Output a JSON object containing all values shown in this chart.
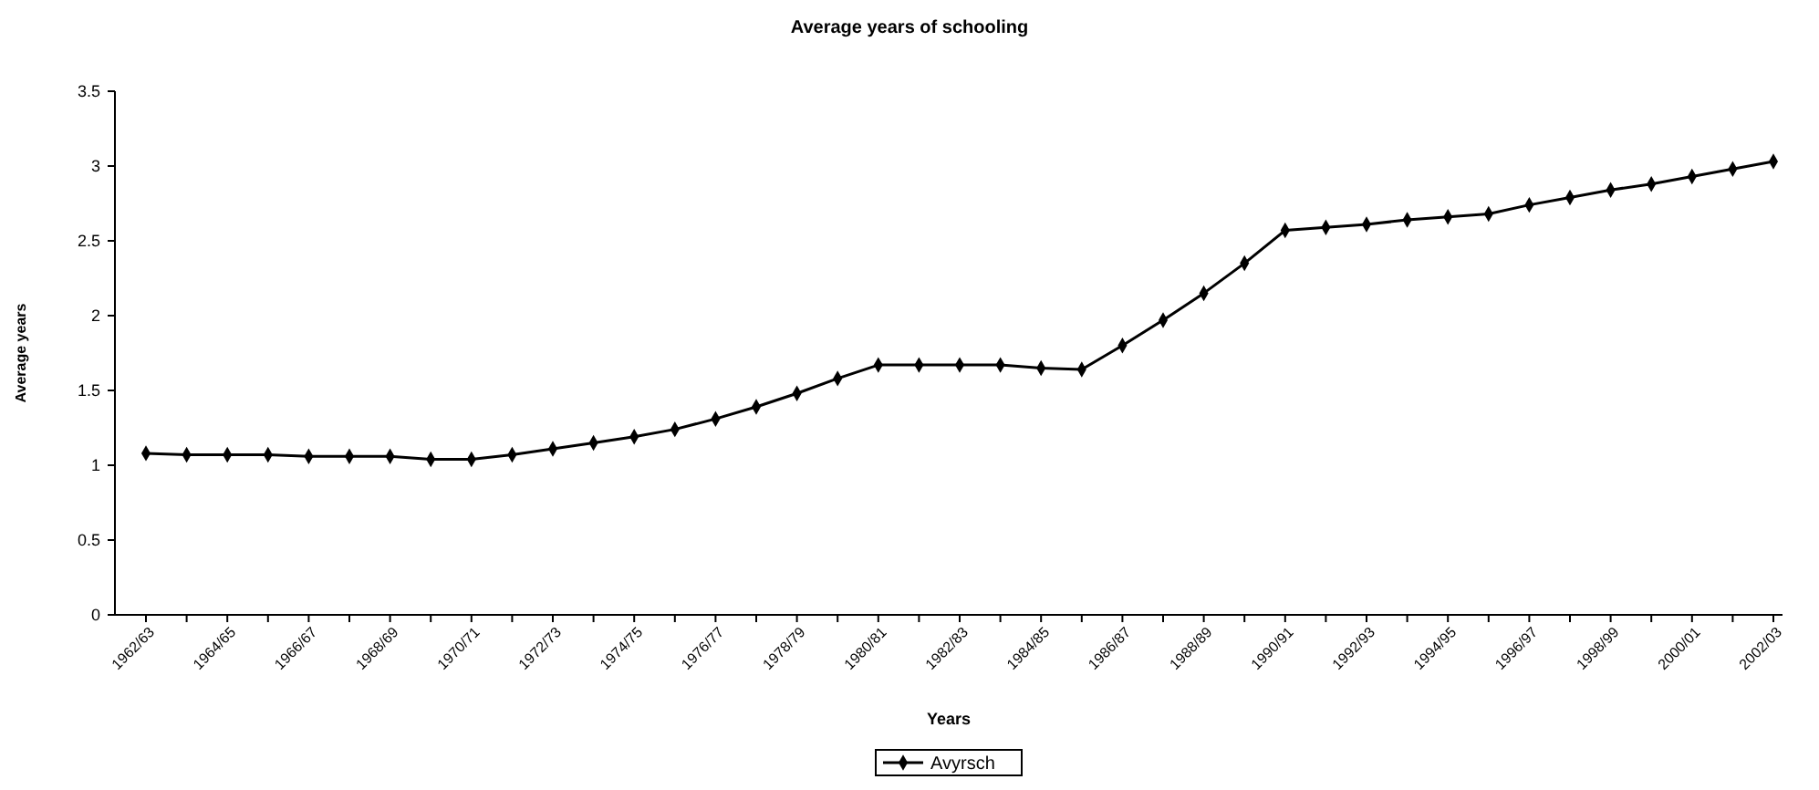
{
  "chart_data": {
    "type": "line",
    "title": "Average years of schooling",
    "xlabel": "Years",
    "ylabel": "Average years",
    "categories": [
      "1962/63",
      null,
      "1964/65",
      null,
      "1966/67",
      null,
      "1968/69",
      null,
      "1970/71",
      null,
      "1972/73",
      null,
      "1974/75",
      null,
      "1976/77",
      null,
      "1978/79",
      null,
      "1980/81",
      null,
      "1982/83",
      null,
      "1984/85",
      null,
      "1986/87",
      null,
      "1988/89",
      null,
      "1990/91",
      null,
      "1992/93",
      null,
      "1994/95",
      null,
      "1996/97",
      null,
      "1998/99",
      null,
      "2000/01",
      null,
      "2002/03"
    ],
    "series": [
      {
        "name": "Avyrsch",
        "color": "#000000",
        "values": [
          1.08,
          1.07,
          1.07,
          1.07,
          1.06,
          1.06,
          1.06,
          1.04,
          1.04,
          1.07,
          1.11,
          1.15,
          1.19,
          1.24,
          1.31,
          1.39,
          1.48,
          1.58,
          1.67,
          1.67,
          1.67,
          1.67,
          1.65,
          1.64,
          1.8,
          1.97,
          2.15,
          2.35,
          2.57,
          2.59,
          2.61,
          2.64,
          2.66,
          2.68,
          2.74,
          2.79,
          2.84,
          2.88,
          2.93,
          2.98,
          3.03
        ]
      }
    ],
    "ylim": [
      0,
      3.5
    ],
    "yticks": [
      0,
      0.5,
      1,
      1.5,
      2,
      2.5,
      3,
      3.5
    ],
    "grid": false,
    "legend": "bottom",
    "marker": "diamond",
    "line_style": "solid"
  }
}
